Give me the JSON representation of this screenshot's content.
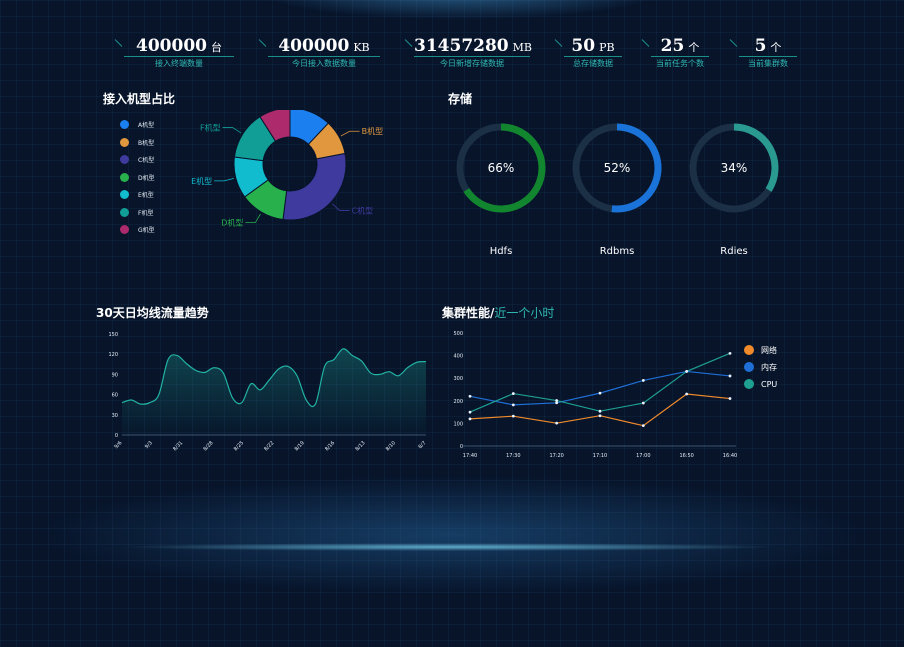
{
  "stats": [
    {
      "value": "400000",
      "unit": "台",
      "label": "接入终端数量"
    },
    {
      "value": "400000",
      "unit": "KB",
      "label": "今日接入数据数量"
    },
    {
      "value": "31457280",
      "unit": "MB",
      "label": "今日新增存储数据"
    },
    {
      "value": "50",
      "unit": "PB",
      "label": "总存储数据"
    },
    {
      "value": "25",
      "unit": "个",
      "label": "当前任务个数"
    },
    {
      "value": "5",
      "unit": "个",
      "label": "当前集群数"
    }
  ],
  "sections": {
    "pie_title": "接入机型占比",
    "storage_title": "存储",
    "traffic_title": "30天日均线流量趋势",
    "cluster_title": "集群性能/",
    "cluster_subtitle": "近一个小时"
  },
  "colors": {
    "A": "#1b7ff0",
    "B": "#e0973e",
    "C": "#3f3a9e",
    "D": "#27b04c",
    "E": "#12bccf",
    "F": "#119e97",
    "G": "#ad2a6c",
    "hdfs": "#11862e",
    "rdbms": "#1a73d9",
    "rdies": "#2a9a90",
    "network": "#f08a2b",
    "memory": "#1f6fd6",
    "cpu": "#1e9f90"
  },
  "chart_data": [
    {
      "type": "pie",
      "donut": true,
      "title": "接入机型占比",
      "labels": [
        "A机型",
        "B机型",
        "C机型",
        "D机型",
        "E机型",
        "F机型",
        "G机型"
      ],
      "values": [
        12,
        10,
        30,
        13,
        12,
        14,
        9
      ],
      "legend": "left"
    },
    {
      "type": "pie",
      "donut": true,
      "title": "存储",
      "gauges": [
        {
          "name": "Hdfs",
          "percent": 66,
          "label": "66%"
        },
        {
          "name": "Rdbms",
          "percent": 52,
          "label": "52%"
        },
        {
          "name": "Rdies",
          "percent": 34,
          "label": "34%"
        }
      ]
    },
    {
      "type": "area",
      "title": "30天日均线流量趋势",
      "x_ticks": [
        "9/6",
        "9/3",
        "8/31",
        "8/28",
        "8/25",
        "8/22",
        "8/19",
        "8/16",
        "8/13",
        "8/10",
        "8/7"
      ],
      "y_ticks": [
        "0",
        "30",
        "60",
        "90",
        "120",
        "150"
      ],
      "ylim": [
        0,
        150
      ],
      "values": [
        48,
        52,
        46,
        48,
        60,
        112,
        118,
        106,
        96,
        93,
        100,
        92,
        55,
        48,
        76,
        67,
        82,
        98,
        102,
        88,
        52,
        46,
        102,
        112,
        128,
        118,
        110,
        92,
        90,
        94,
        88,
        100,
        108,
        109
      ],
      "grid": false
    },
    {
      "type": "line",
      "title": "集群性能/近一个小时",
      "categories": [
        "17:40",
        "17:30",
        "17:20",
        "17:10",
        "17:00",
        "16:50",
        "16:40"
      ],
      "y_ticks": [
        "0",
        "100",
        "200",
        "300",
        "400",
        "500"
      ],
      "ylim": [
        0,
        500
      ],
      "series": [
        {
          "name": "网络",
          "values": [
            120,
            132,
            101,
            134,
            90,
            230,
            210
          ]
        },
        {
          "name": "内存",
          "values": [
            220,
            182,
            191,
            234,
            290,
            330,
            310
          ]
        },
        {
          "name": "CPU",
          "values": [
            150,
            232,
            201,
            154,
            190,
            330,
            410
          ]
        }
      ],
      "legend": "right"
    }
  ]
}
